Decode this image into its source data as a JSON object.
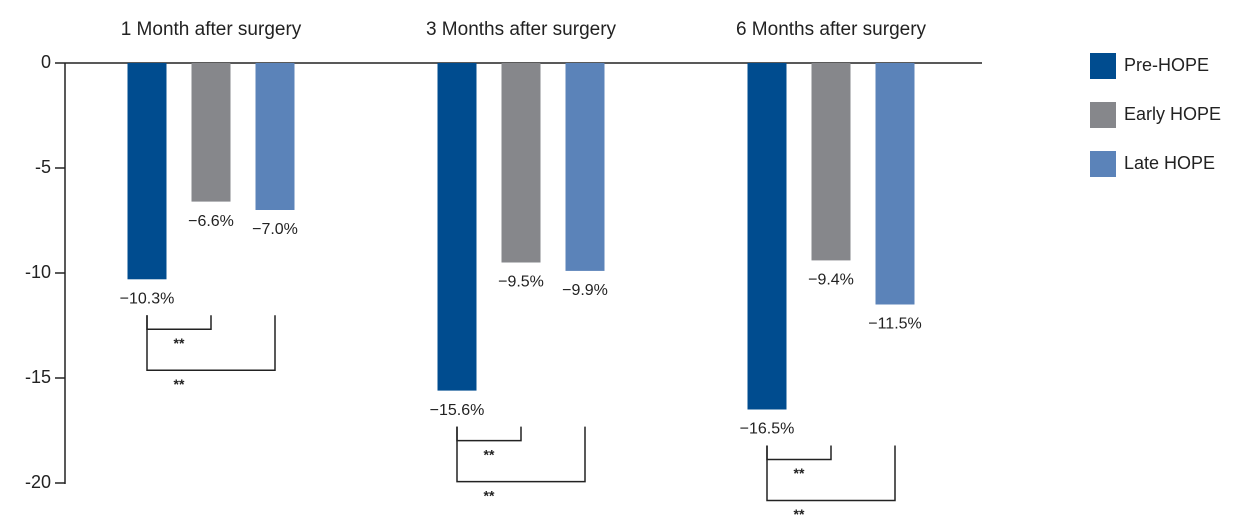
{
  "chart_data": {
    "type": "bar",
    "categories": [
      "1 Month after surgery",
      "3 Months after surgery",
      "6 Months after surgery"
    ],
    "series": [
      {
        "name": "Pre-HOPE",
        "color": "#004c8f",
        "values": [
          -10.3,
          -15.6,
          -16.5
        ],
        "value_labels": [
          "−10.3%",
          "−15.6%",
          "−16.5%"
        ]
      },
      {
        "name": "Early HOPE",
        "color": "#86878b",
        "values": [
          -6.6,
          -9.5,
          -9.4
        ],
        "value_labels": [
          "−6.6%",
          "−9.5%",
          "−9.4%"
        ]
      },
      {
        "name": "Late HOPE",
        "color": "#5b83b9",
        "values": [
          -7.0,
          -9.9,
          -11.5
        ],
        "value_labels": [
          "−7.0%",
          "−9.9%",
          "−11.5%"
        ]
      }
    ],
    "ylim": [
      -20,
      0
    ],
    "yticks": [
      0,
      -5,
      -10,
      -15,
      -20
    ],
    "brackets": [
      {
        "category": 0,
        "series": [
          0,
          1
        ],
        "label": "**"
      },
      {
        "category": 0,
        "series": [
          0,
          2
        ],
        "label": "**"
      },
      {
        "category": 1,
        "series": [
          0,
          1
        ],
        "label": "**"
      },
      {
        "category": 1,
        "series": [
          0,
          2
        ],
        "label": "**"
      },
      {
        "category": 2,
        "series": [
          0,
          1
        ],
        "label": "**"
      },
      {
        "category": 2,
        "series": [
          0,
          2
        ],
        "label": "**"
      }
    ]
  }
}
